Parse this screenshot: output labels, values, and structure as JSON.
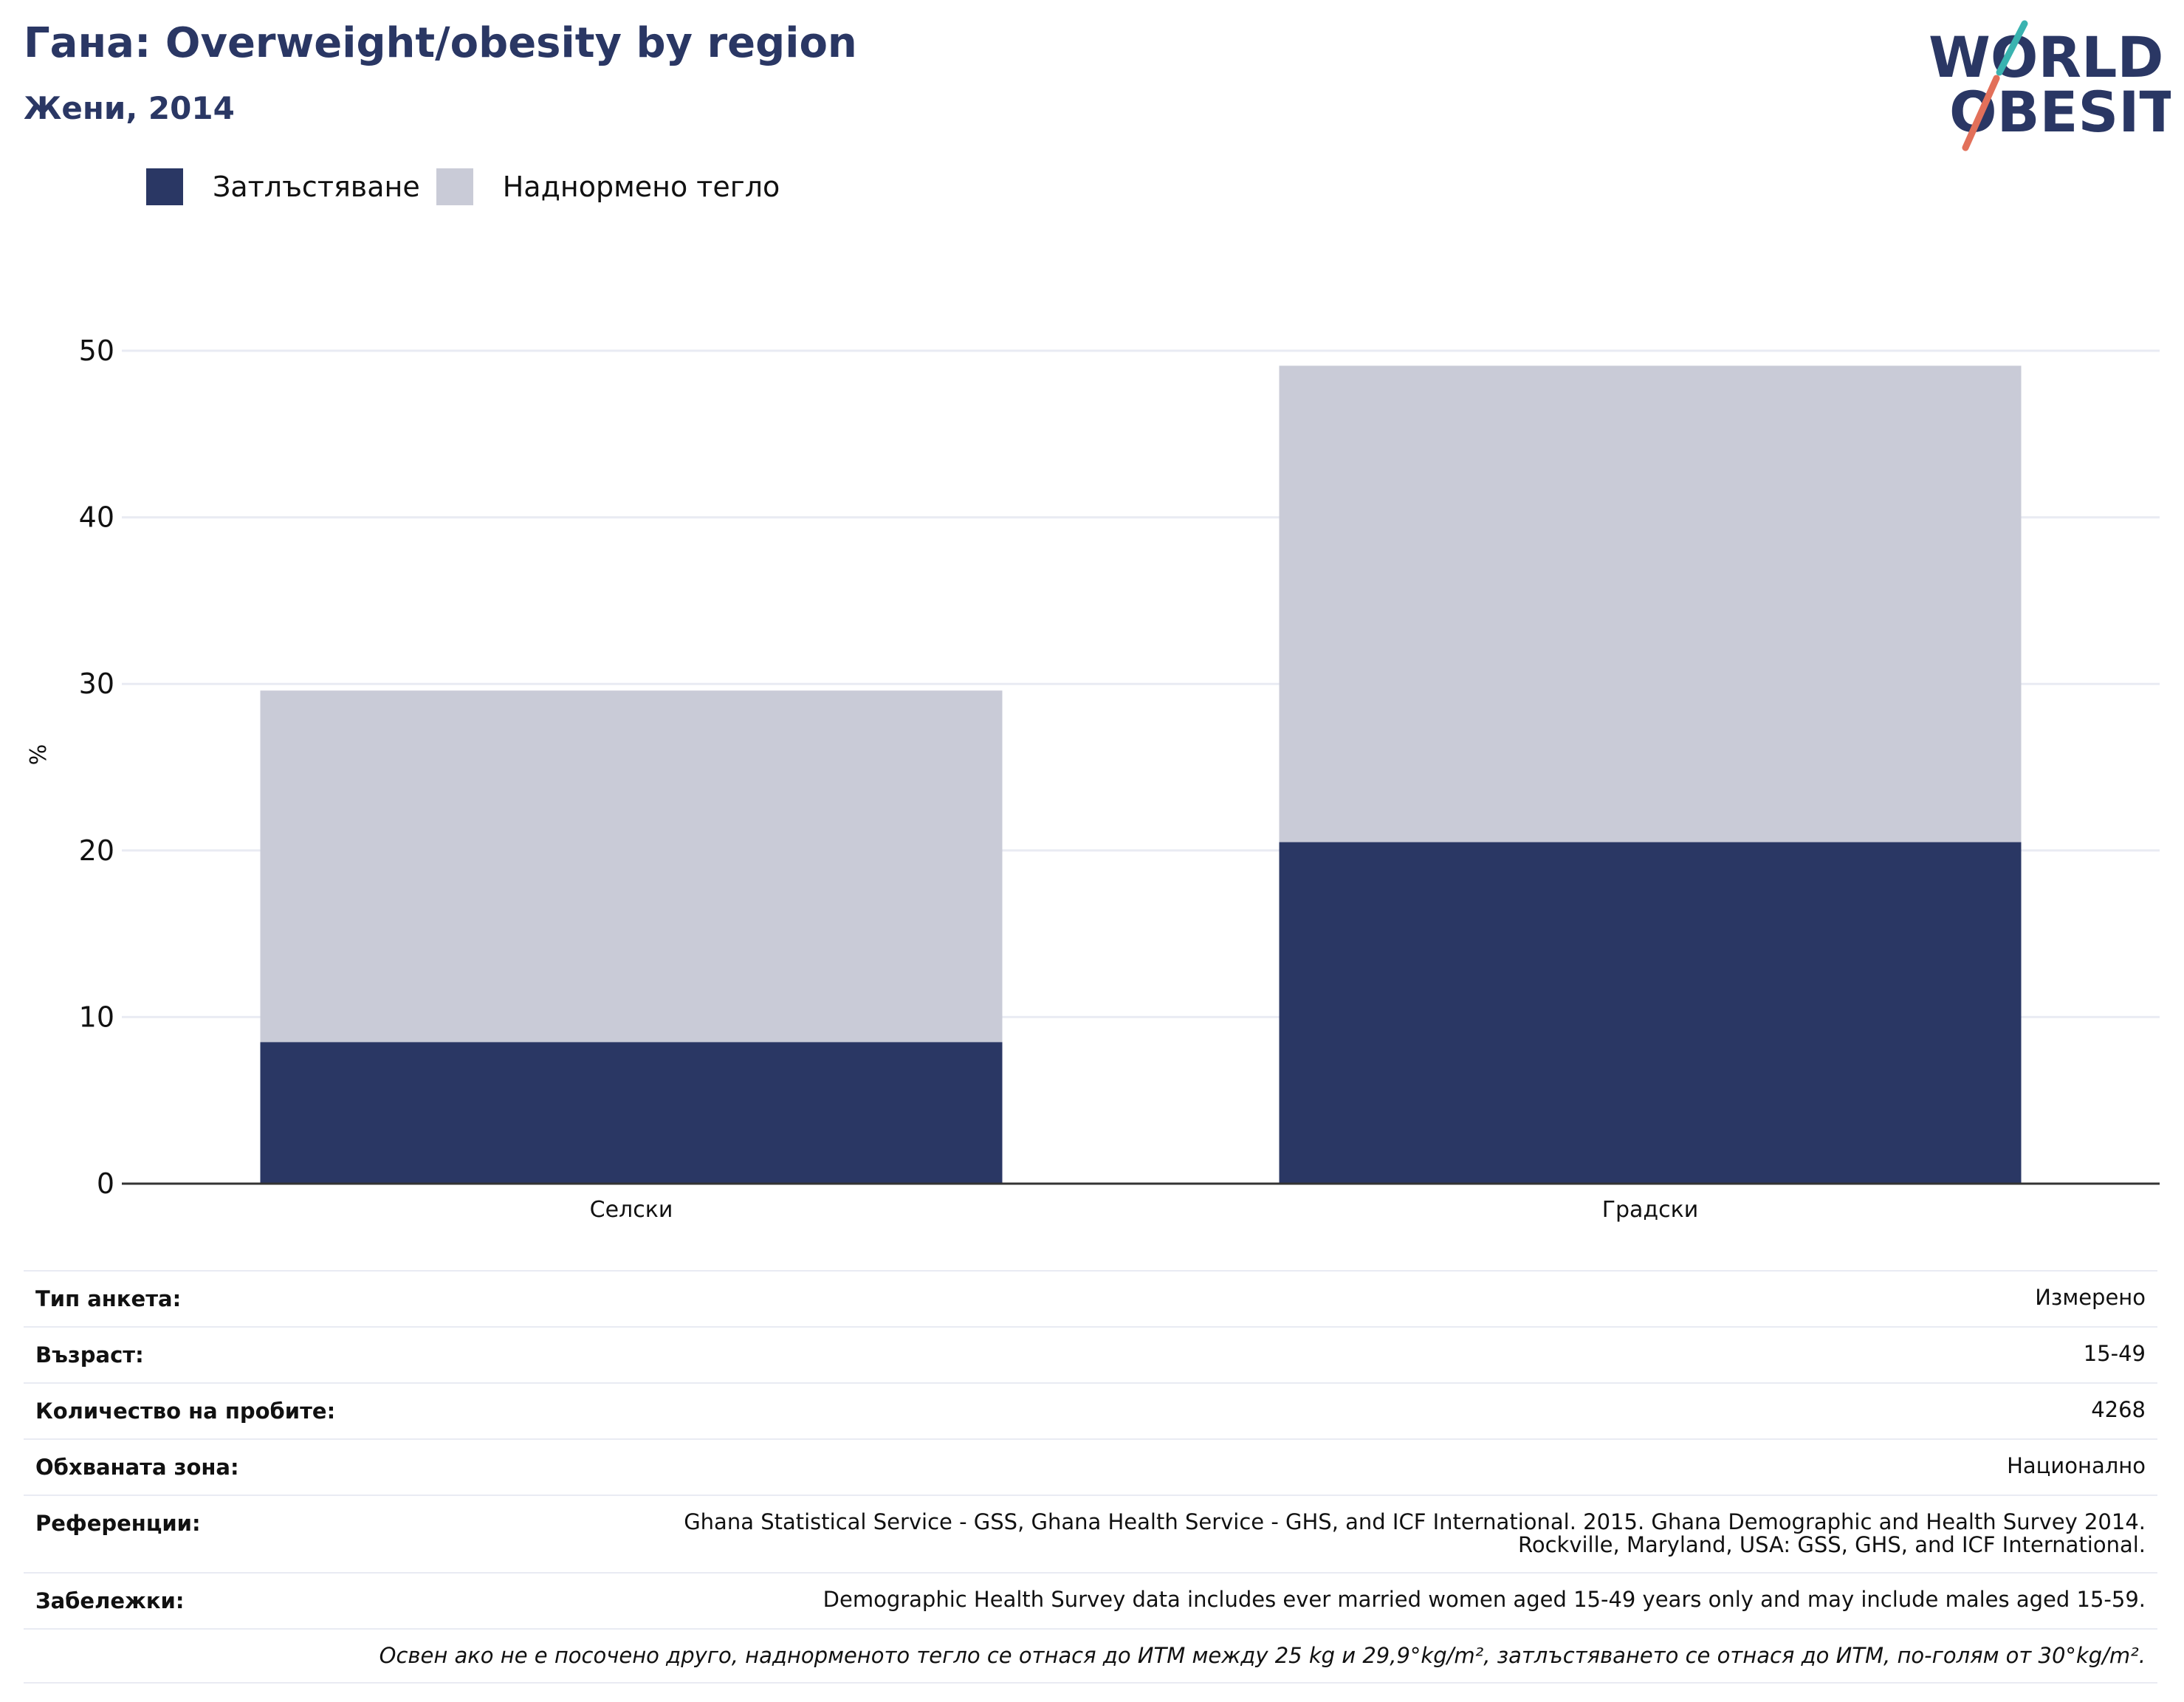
{
  "title": "Гана: Overweight/obesity by region",
  "subtitle": "Жени, 2014",
  "logo": {
    "line1": "WORLD",
    "line2": "OBESITY",
    "colors": {
      "text": "#2a3764",
      "slash_top": "#3ab3b0",
      "slash_bottom": "#e2705a"
    }
  },
  "colors": {
    "obesity": "#2a3764",
    "overweight": "#c9cbd7",
    "grid": "#e9ebf3",
    "axis": "#333333"
  },
  "chart_data": {
    "type": "bar",
    "stacked": true,
    "categories": [
      "Селски",
      "Градски"
    ],
    "series": [
      {
        "name": "Затлъстяване",
        "values": [
          8.5,
          20.5
        ]
      },
      {
        "name": "Наднормено тегло",
        "values": [
          21.1,
          28.6
        ]
      }
    ],
    "ylabel": "%",
    "ylim": [
      0,
      50
    ],
    "yticks": [
      0,
      10,
      20,
      30,
      40,
      50
    ],
    "grid": true,
    "legend": "top-left"
  },
  "table": {
    "survey_type": {
      "label": "Тип анкета:",
      "value": "Измерено"
    },
    "age": {
      "label": "Възраст:",
      "value": "15-49"
    },
    "sample": {
      "label": "Количество на пробите:",
      "value": "4268"
    },
    "area": {
      "label": "Обхваната зона:",
      "value": "Национално"
    },
    "references": {
      "label": "Референции:",
      "value": "Ghana Statistical Service - GSS, Ghana Health Service - GHS, and ICF International. 2015. Ghana Demographic and Health Survey 2014.\nRockville, Maryland, USA: GSS, GHS, and ICF International."
    },
    "notes": {
      "label": "Забележки:",
      "value": "Demographic Health Survey data includes ever married women aged 15-49 years only and may include males aged 15-59."
    },
    "footnote": "Освен ако не е посочено друго, наднорменото тегло се отнася до ИТМ между 25 kg и 29,9°kg/m², затлъстяването се отнася до ИТМ, по-голям от 30°kg/m²."
  }
}
